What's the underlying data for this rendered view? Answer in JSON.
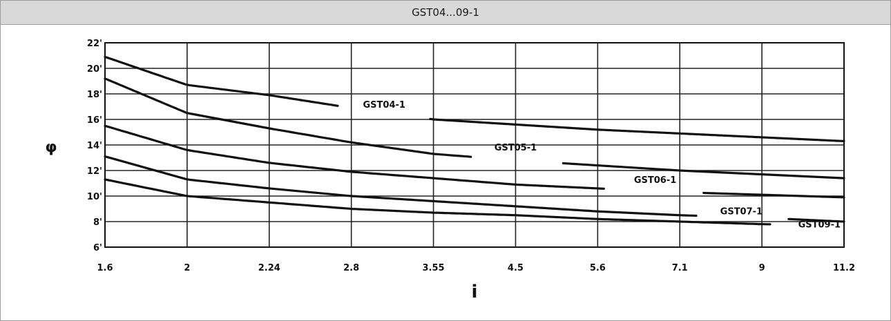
{
  "header": {
    "title": "GST04...09-1"
  },
  "chart_data": {
    "type": "line",
    "xlabel": "i",
    "ylabel": "φ",
    "grid": true,
    "x_ticks": [
      "1.6",
      "2",
      "2.24",
      "2.8",
      "3.55",
      "4.5",
      "5.6",
      "7.1",
      "9",
      "11.2"
    ],
    "y_ticks": [
      "6'",
      "8'",
      "10'",
      "12'",
      "14'",
      "16'",
      "18'",
      "20'",
      "22'"
    ],
    "ylim": [
      6,
      22
    ],
    "series": [
      {
        "name": "GST04-1",
        "x": [
          "1.6",
          "2",
          "2.24",
          "2.8",
          "3.55",
          "4.5",
          "5.6",
          "7.1",
          "9",
          "11.2"
        ],
        "y": [
          20.9,
          18.7,
          17.9,
          16.9,
          16.0,
          15.6,
          15.2,
          14.9,
          14.6,
          14.3
        ]
      },
      {
        "name": "GST05-1",
        "x": [
          "1.6",
          "2",
          "2.24",
          "2.8",
          "3.55",
          "4.5",
          "5.6",
          "7.1",
          "9",
          "11.2"
        ],
        "y": [
          19.2,
          16.5,
          15.3,
          14.2,
          13.3,
          12.8,
          12.4,
          12.0,
          11.7,
          11.4
        ]
      },
      {
        "name": "GST06-1",
        "x": [
          "1.6",
          "2",
          "2.24",
          "2.8",
          "3.55",
          "4.5",
          "5.6",
          "7.1",
          "9",
          "11.2"
        ],
        "y": [
          15.5,
          13.6,
          12.6,
          11.9,
          11.4,
          10.9,
          10.6,
          10.3,
          10.1,
          9.9
        ]
      },
      {
        "name": "GST07-1",
        "x": [
          "1.6",
          "2",
          "2.24",
          "2.8",
          "3.55",
          "4.5",
          "5.6",
          "7.1",
          "9",
          "11.2"
        ],
        "y": [
          13.1,
          11.3,
          10.6,
          10.0,
          9.6,
          9.2,
          8.8,
          8.5,
          8.3,
          8.0
        ]
      },
      {
        "name": "GST09-1",
        "x": [
          "1.6",
          "2",
          "2.24",
          "2.8",
          "3.55",
          "4.5",
          "5.6",
          "7.1",
          "9",
          "11.2"
        ],
        "y": [
          11.3,
          10.0,
          9.5,
          9.0,
          8.7,
          8.5,
          8.2,
          8.0,
          7.8,
          7.7
        ]
      }
    ]
  }
}
